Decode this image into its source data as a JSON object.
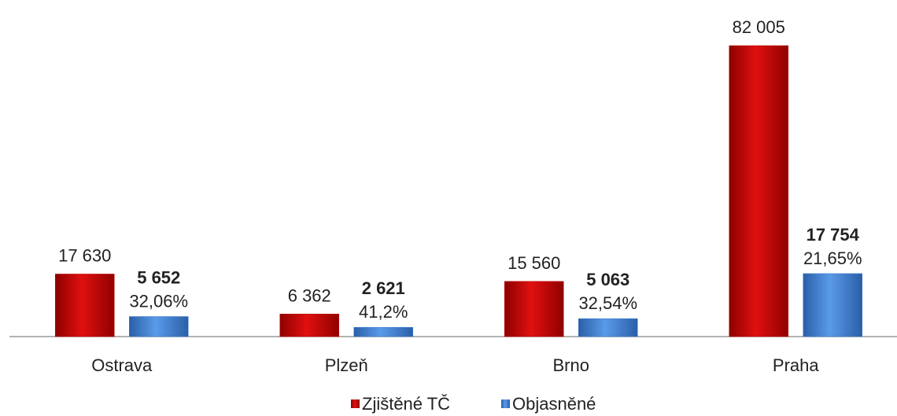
{
  "chart_data": {
    "type": "bar",
    "categories": [
      "Ostrava",
      "Plzeň",
      "Brno",
      "Praha"
    ],
    "series": [
      {
        "name": "Zjištěné TČ",
        "color": "#c00000",
        "values": [
          17630,
          6362,
          15560,
          82005
        ],
        "value_labels": [
          "17 630",
          "6 362",
          "15 560",
          "82 005"
        ]
      },
      {
        "name": "Objasněné",
        "color": "#3b7bd0",
        "values": [
          5652,
          2621,
          5063,
          17754
        ],
        "value_labels": [
          "5 652",
          "2 621",
          "5 063",
          "17 754"
        ],
        "shares": [
          32.06,
          41.2,
          32.54,
          21.65
        ],
        "share_labels": [
          "32,06%",
          "41,2%",
          "32,54%",
          "21,65%"
        ]
      }
    ],
    "legend": "bottom"
  }
}
